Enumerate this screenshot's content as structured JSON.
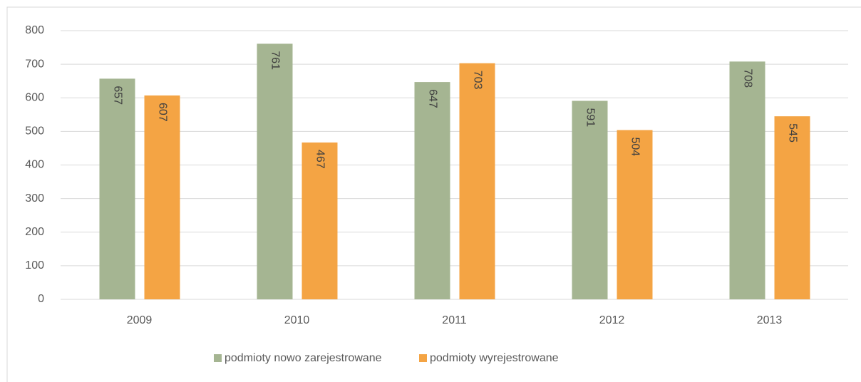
{
  "chart_data": {
    "type": "bar",
    "categories": [
      "2009",
      "2010",
      "2011",
      "2012",
      "2013"
    ],
    "series": [
      {
        "name": "podmioty nowo zarejestrowane",
        "color": "#a5b592",
        "values": [
          657,
          761,
          647,
          591,
          708
        ]
      },
      {
        "name": "podmioty wyrejestrowane",
        "color": "#f4a444",
        "values": [
          607,
          467,
          703,
          504,
          545
        ]
      }
    ],
    "ylim": [
      0,
      800
    ],
    "yticks": [
      0,
      100,
      200,
      300,
      400,
      500,
      600,
      700,
      800
    ],
    "grid": true,
    "legend": "bottom",
    "data_labels": true
  }
}
